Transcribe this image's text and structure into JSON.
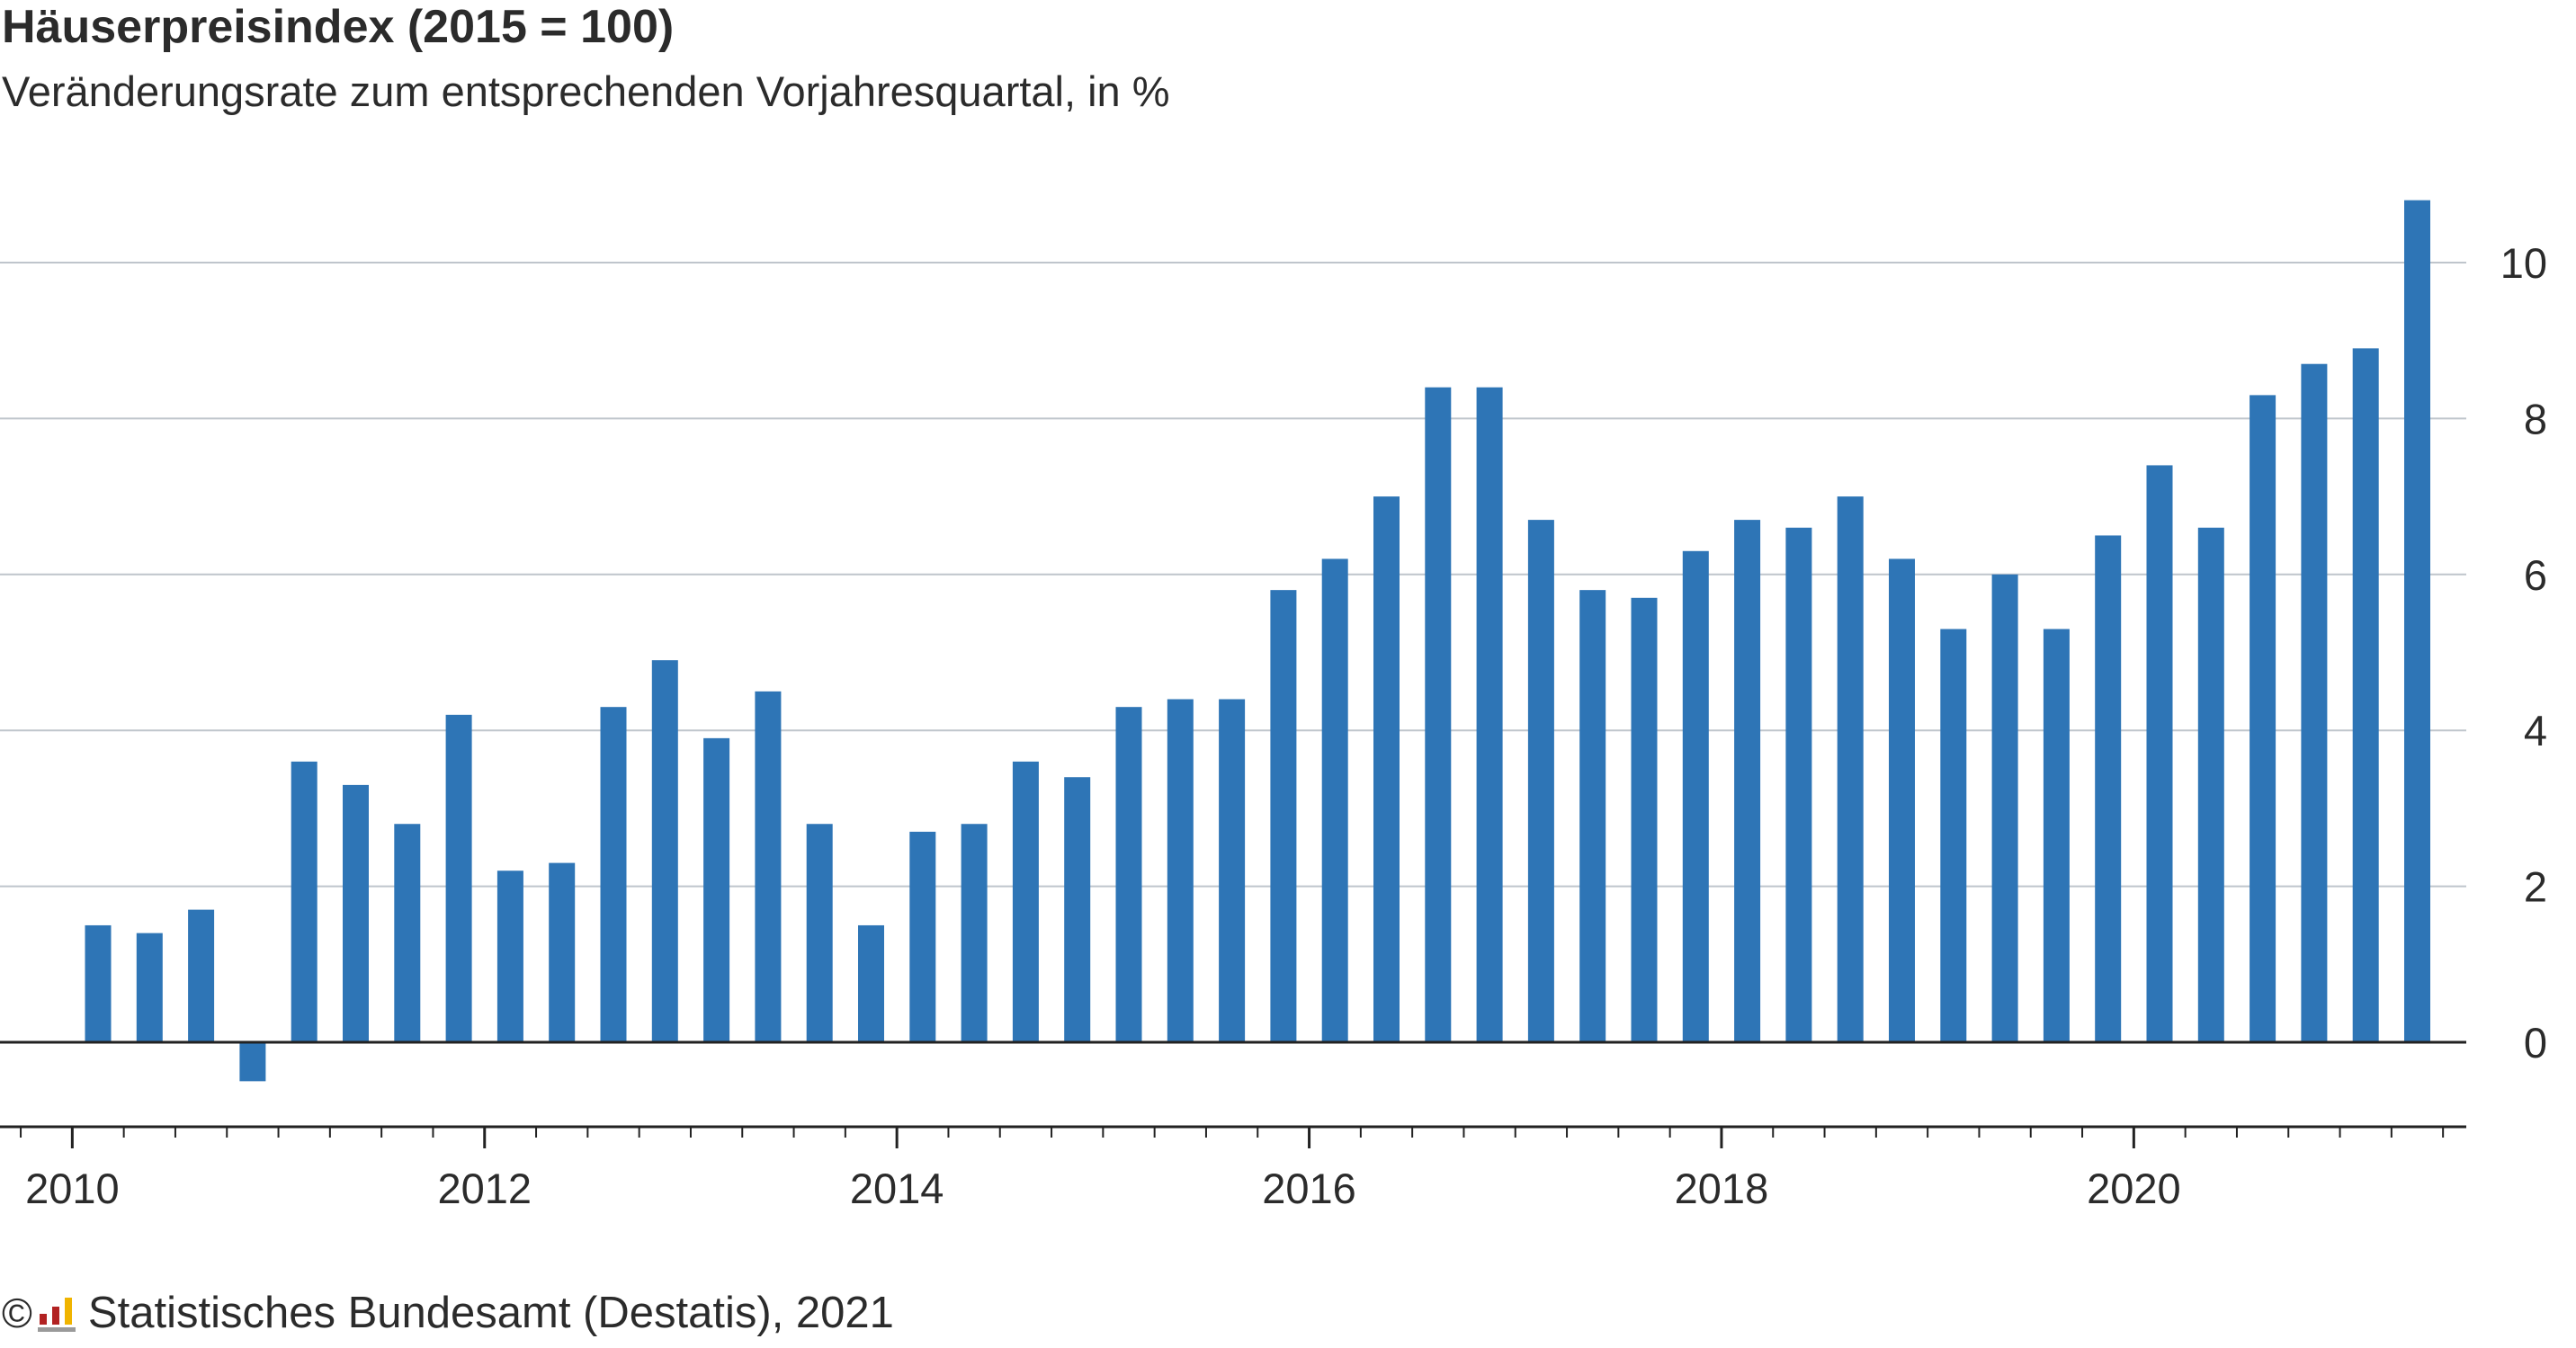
{
  "header": {
    "title": "Häuserpreisindex (2015 = 100)",
    "subtitle": "Veränderungsrate zum entsprechenden Vorjahresquartal, in %"
  },
  "footer": {
    "copyright_symbol": "©",
    "source": "Statistisches Bundesamt (Destatis), 2021"
  },
  "colors": {
    "bar": "#2e75b6",
    "grid": "#bfc5cc",
    "axis": "#222222",
    "logo_red": "#b22222",
    "logo_yellow": "#f0b400",
    "logo_grey": "#9a9a9a"
  },
  "chart_data": {
    "type": "bar",
    "title": "Häuserpreisindex (2015 = 100)",
    "subtitle": "Veränderungsrate zum entsprechenden Vorjahresquartal, in %",
    "xlabel": "",
    "ylabel": "",
    "ylim": [
      -1.1,
      11
    ],
    "yticks": [
      0,
      2,
      4,
      6,
      8,
      10
    ],
    "y_axis_position": "right",
    "grid": true,
    "x_tick_labels": [
      "2010",
      "2012",
      "2014",
      "2016",
      "2018",
      "2020"
    ],
    "categories": [
      "2010 Q1",
      "2010 Q2",
      "2010 Q3",
      "2010 Q4",
      "2011 Q1",
      "2011 Q2",
      "2011 Q3",
      "2011 Q4",
      "2012 Q1",
      "2012 Q2",
      "2012 Q3",
      "2012 Q4",
      "2013 Q1",
      "2013 Q2",
      "2013 Q3",
      "2013 Q4",
      "2014 Q1",
      "2014 Q2",
      "2014 Q3",
      "2014 Q4",
      "2015 Q1",
      "2015 Q2",
      "2015 Q3",
      "2015 Q4",
      "2016 Q1",
      "2016 Q2",
      "2016 Q3",
      "2016 Q4",
      "2017 Q1",
      "2017 Q2",
      "2017 Q3",
      "2017 Q4",
      "2018 Q1",
      "2018 Q2",
      "2018 Q3",
      "2018 Q4",
      "2019 Q1",
      "2019 Q2",
      "2019 Q3",
      "2019 Q4",
      "2020 Q1",
      "2020 Q2",
      "2020 Q3",
      "2020 Q4",
      "2021 Q1",
      "2021 Q2"
    ],
    "values": [
      1.5,
      1.4,
      1.7,
      -0.5,
      3.6,
      3.3,
      2.8,
      4.2,
      2.2,
      2.3,
      4.3,
      4.9,
      3.9,
      4.5,
      2.8,
      1.5,
      2.7,
      2.8,
      3.6,
      3.4,
      4.3,
      4.4,
      4.4,
      5.8,
      6.2,
      7.0,
      8.4,
      8.4,
      6.7,
      5.8,
      5.7,
      6.3,
      6.7,
      6.6,
      7.0,
      6.2,
      5.3,
      6.0,
      5.3,
      6.5,
      7.4,
      6.6,
      8.3,
      8.7,
      8.9,
      10.8
    ]
  }
}
